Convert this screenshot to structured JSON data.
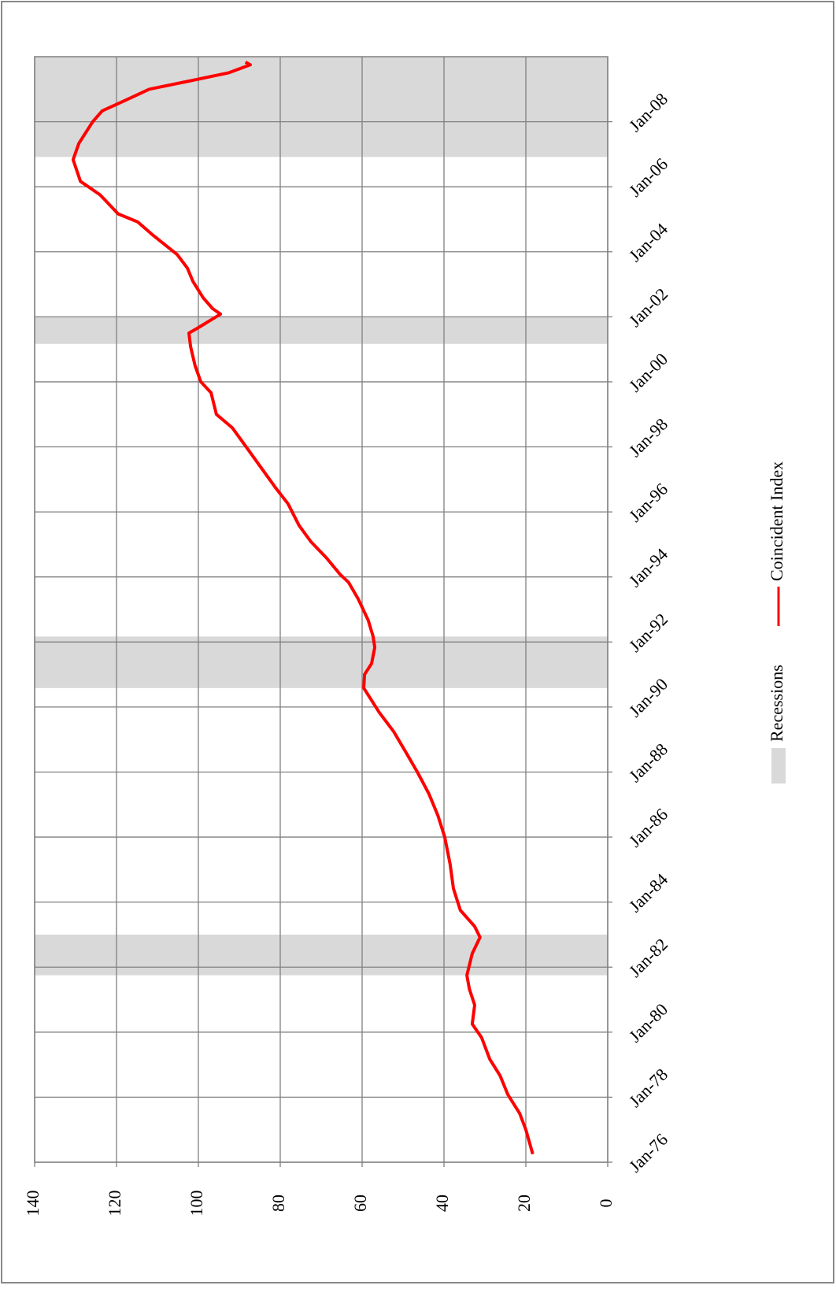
{
  "chart_data": {
    "type": "line",
    "x": [
      "1976-04",
      "1977-01",
      "1977-07",
      "1978-02",
      "1978-09",
      "1979-03",
      "1979-11",
      "1980-04",
      "1980-11",
      "1981-05",
      "1981-10",
      "1982-06",
      "1982-12",
      "1983-04",
      "1983-10",
      "1984-06",
      "1985-03",
      "1986-01",
      "1986-09",
      "1987-05",
      "1988-01",
      "1988-08",
      "1989-04",
      "1989-11",
      "1990-08",
      "1991-01",
      "1991-05",
      "1991-11",
      "1992-03",
      "1992-09",
      "1993-05",
      "1993-11",
      "1994-02",
      "1994-08",
      "1995-02",
      "1995-08",
      "1996-04",
      "1996-10",
      "1997-06",
      "1998-02",
      "1998-08",
      "1999-01",
      "1999-09",
      "2000-01",
      "2000-07",
      "2001-02",
      "2001-07",
      "2001-09",
      "2002-02",
      "2002-04",
      "2002-08",
      "2003-02",
      "2003-07",
      "2003-12",
      "2004-07",
      "2004-12",
      "2005-03",
      "2005-10",
      "2006-03",
      "2006-11",
      "2007-05",
      "2008-01",
      "2008-05",
      "2008-09",
      "2009-01",
      "2009-04",
      "2009-07",
      "2009-10",
      "2009-11"
    ],
    "series": [
      {
        "name": "Coincident Index",
        "color": "#ff0000",
        "values": [
          18.3,
          20,
          21.5,
          24.4,
          26.3,
          28.8,
          30.8,
          33.1,
          32.5,
          33.8,
          34.4,
          33.1,
          31.2,
          32.5,
          36,
          37.7,
          38.5,
          39.8,
          41.5,
          43.7,
          46.5,
          49.2,
          52.3,
          55.8,
          59.6,
          59.4,
          57.7,
          56.9,
          57.3,
          58.5,
          61,
          63.3,
          65.4,
          68.7,
          72.5,
          75.4,
          78.1,
          81.2,
          85,
          88.8,
          91.7,
          95.6,
          96.9,
          99.4,
          100.8,
          101.9,
          102.3,
          100,
          94.6,
          96.5,
          98.8,
          101.3,
          102.7,
          105.2,
          111,
          114.8,
          119.6,
          124,
          128.8,
          130.6,
          129.2,
          125.8,
          123.5,
          117.7,
          112,
          102.3,
          92.7,
          87.3,
          88.5
        ]
      }
    ],
    "recessions": {
      "name": "Recessions",
      "color": "#d9d9d9",
      "periods": [
        [
          "1981-10",
          "1983-01"
        ],
        [
          "1990-08",
          "1992-03"
        ],
        [
          "2001-03",
          "2002-01"
        ],
        [
          "2006-12",
          "2010-01"
        ]
      ]
    },
    "xlim": [
      "1976-01",
      "2010-01"
    ],
    "xticks": [
      {
        "value": "1976-01",
        "label": "Jan-76"
      },
      {
        "value": "1978-01",
        "label": "Jan-78"
      },
      {
        "value": "1980-01",
        "label": "Jan-80"
      },
      {
        "value": "1982-01",
        "label": "Jan-82"
      },
      {
        "value": "1984-01",
        "label": "Jan-84"
      },
      {
        "value": "1986-01",
        "label": "Jan-86"
      },
      {
        "value": "1988-01",
        "label": "Jan-88"
      },
      {
        "value": "1990-01",
        "label": "Jan-90"
      },
      {
        "value": "1992-01",
        "label": "Jan-92"
      },
      {
        "value": "1994-01",
        "label": "Jan-94"
      },
      {
        "value": "1996-01",
        "label": "Jan-96"
      },
      {
        "value": "1998-01",
        "label": "Jan-98"
      },
      {
        "value": "2000-01",
        "label": "Jan-00"
      },
      {
        "value": "2002-01",
        "label": "Jan-02"
      },
      {
        "value": "2004-01",
        "label": "Jan-04"
      },
      {
        "value": "2006-01",
        "label": "Jan-06"
      },
      {
        "value": "2008-01",
        "label": "Jan-08"
      }
    ],
    "ylim": [
      0,
      140
    ],
    "yticks": [
      0,
      20,
      40,
      60,
      80,
      100,
      120,
      140
    ],
    "grid": true,
    "rotated": true
  }
}
